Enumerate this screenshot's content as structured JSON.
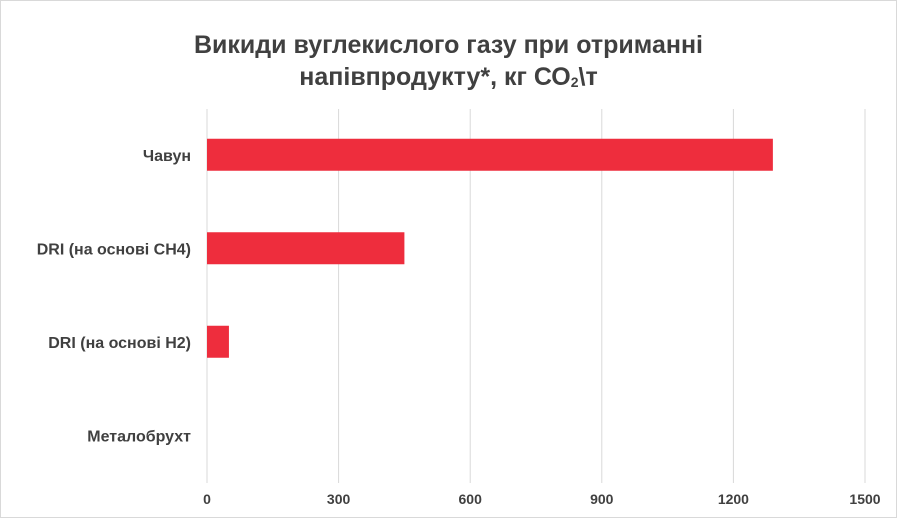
{
  "chart_data": {
    "type": "bar",
    "orientation": "horizontal",
    "title_line1": "Викиди вуглекислого газу при отриманні",
    "title_line2_a": "напівпродукту*, кг СО",
    "title_sub": "2",
    "title_line2_b": "\\т",
    "categories": [
      "Чавун",
      "DRI (на основі CH4)",
      "DRI (на основі H2)",
      "Металобрухт"
    ],
    "values": [
      1290,
      450,
      50,
      0
    ],
    "xlim": [
      0,
      1500
    ],
    "x_ticks": [
      "0",
      "300",
      "600",
      "900",
      "1200",
      "1500"
    ],
    "grid": true,
    "legend": "none"
  },
  "colors": {
    "bar": "#ee2d3d",
    "grid": "#d9d9d9",
    "text": "#404040"
  }
}
